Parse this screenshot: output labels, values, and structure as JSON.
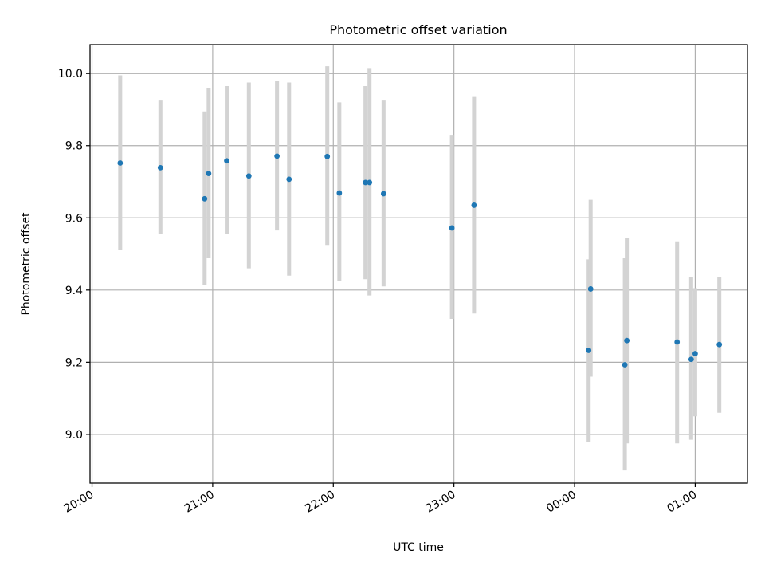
{
  "chart_data": {
    "type": "scatter",
    "title": "Photometric offset variation",
    "xlabel": "UTC time",
    "ylabel": "Photometric offset",
    "x_ticks": [
      "20:00",
      "21:00",
      "22:00",
      "23:00",
      "00:00",
      "01:00"
    ],
    "x_tick_minutes": [
      0,
      60,
      120,
      180,
      240,
      300
    ],
    "y_ticks": [
      "9.0",
      "9.2",
      "9.4",
      "9.6",
      "9.8",
      "10.0"
    ],
    "y_tick_values": [
      9.0,
      9.2,
      9.4,
      9.6,
      9.8,
      10.0
    ],
    "xlim_minutes": [
      -1,
      326
    ],
    "ylim": [
      8.865,
      10.08
    ],
    "grid": true,
    "colors": {
      "marker": "#1f77b4",
      "errorbar": "#d3d3d3",
      "grid": "#b0b0b0",
      "axes": "#000000"
    },
    "x_minutes": [
      14,
      34,
      56,
      58,
      67,
      78,
      92,
      98,
      117,
      123,
      136,
      138,
      145,
      179,
      190,
      247,
      248,
      265,
      266,
      291,
      298,
      300,
      312
    ],
    "y": [
      9.752,
      9.739,
      9.653,
      9.723,
      9.758,
      9.716,
      9.771,
      9.707,
      9.77,
      9.669,
      9.698,
      9.698,
      9.667,
      9.572,
      9.635,
      9.233,
      9.403,
      9.193,
      9.26,
      9.256,
      9.208,
      9.224,
      9.249
    ],
    "yerr_low": [
      9.51,
      9.555,
      9.415,
      9.49,
      9.555,
      9.46,
      9.565,
      9.44,
      9.525,
      9.425,
      9.43,
      9.385,
      9.41,
      9.32,
      9.335,
      8.98,
      9.16,
      8.9,
      8.975,
      8.975,
      8.985,
      9.05,
      9.06
    ],
    "yerr_high": [
      9.995,
      9.925,
      9.895,
      9.96,
      9.965,
      9.975,
      9.98,
      9.975,
      10.02,
      9.92,
      9.965,
      10.015,
      9.925,
      9.83,
      9.935,
      9.485,
      9.65,
      9.49,
      9.545,
      9.535,
      9.435,
      9.405,
      9.435
    ]
  }
}
